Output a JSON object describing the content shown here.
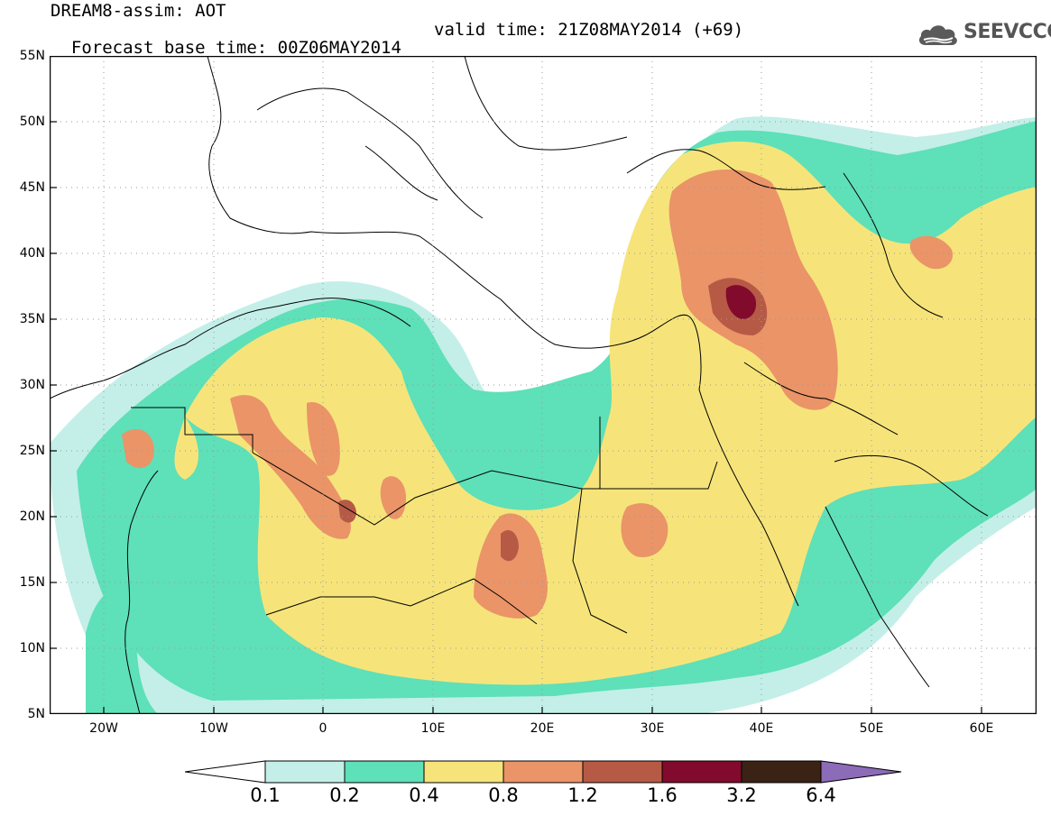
{
  "header": {
    "line1": "DREAM8-assim: AOT",
    "line2_left": "Forecast base time: 00Z06MAY2014",
    "line2_right": "valid time: 21Z08MAY2014 (+69)"
  },
  "logo": {
    "text": "SEEVCCC",
    "icon": "cloud-logo-icon",
    "color": "#5a5a5a"
  },
  "axes": {
    "lat_labels": [
      "55N",
      "50N",
      "45N",
      "40N",
      "35N",
      "30N",
      "25N",
      "20N",
      "15N",
      "10N",
      "5N"
    ],
    "lon_labels": [
      "20W",
      "10W",
      "0",
      "10E",
      "20E",
      "30E",
      "40E",
      "50E",
      "60E"
    ],
    "lon_range": [
      -25,
      65
    ],
    "lat_range": [
      5,
      55
    ]
  },
  "colorbar": {
    "labels": [
      "0.1",
      "0.2",
      "0.4",
      "0.8",
      "1.2",
      "1.6",
      "3.2",
      "6.4"
    ],
    "colors": [
      "#ffffff",
      "#c3efe8",
      "#5ee0b8",
      "#f6e47a",
      "#ea9468",
      "#b65a46",
      "#820a2c",
      "#3a2214",
      "#8c6bb8"
    ]
  },
  "map": {
    "grid": "dotted",
    "field": "AOT dust aerosol optical thickness"
  }
}
